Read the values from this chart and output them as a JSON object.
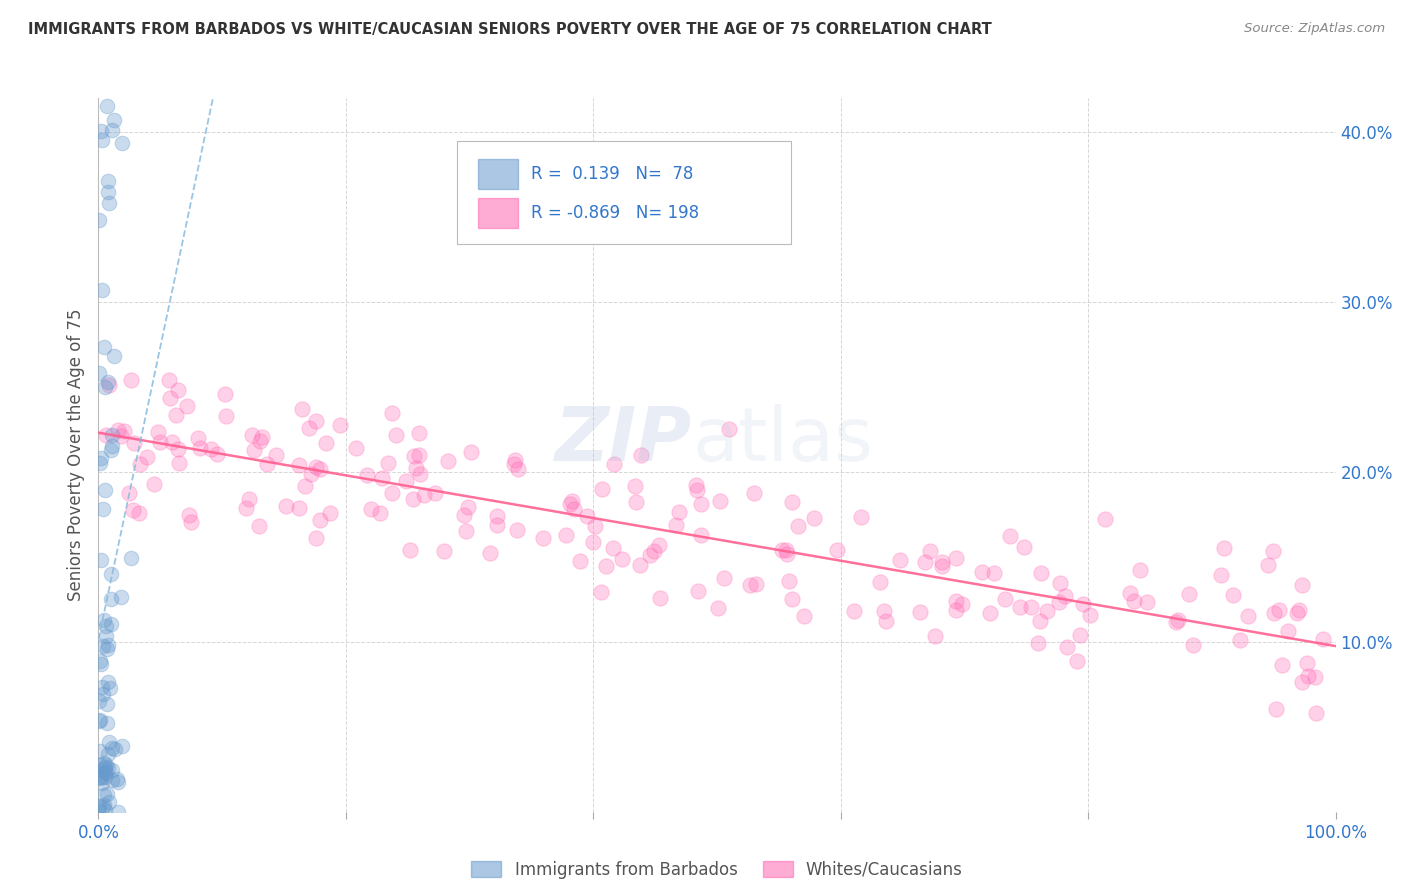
{
  "title": "IMMIGRANTS FROM BARBADOS VS WHITE/CAUCASIAN SENIORS POVERTY OVER THE AGE OF 75 CORRELATION CHART",
  "source": "Source: ZipAtlas.com",
  "ylabel": "Seniors Poverty Over the Age of 75",
  "xlim": [
    0,
    1.0
  ],
  "ylim": [
    0,
    0.42
  ],
  "yticks": [
    0.1,
    0.2,
    0.3,
    0.4
  ],
  "ytick_labels": [
    "10.0%",
    "20.0%",
    "30.0%",
    "40.0%"
  ],
  "xticks": [
    0.0,
    0.2,
    0.4,
    0.6,
    0.8,
    1.0
  ],
  "xtick_labels": [
    "0.0%",
    "",
    "",
    "",
    "",
    "100.0%"
  ],
  "blue_R": 0.139,
  "blue_N": 78,
  "pink_R": -0.869,
  "pink_N": 198,
  "blue_color": "#6699CC",
  "pink_color": "#FF69B4",
  "trend_blue_color": "#88BBDD",
  "trend_pink_color": "#FF6090",
  "watermark_zip": "ZIP",
  "watermark_atlas": "atlas",
  "background_color": "#FFFFFF",
  "grid_color": "#CCCCCC",
  "axis_label_color": "#3377CC",
  "title_color": "#333333",
  "source_color": "#888888"
}
